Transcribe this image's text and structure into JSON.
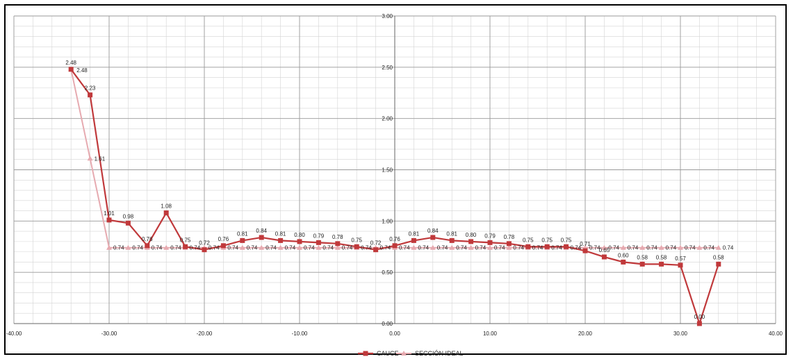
{
  "chart_data": {
    "type": "line",
    "title": "",
    "xlabel": "",
    "ylabel": "",
    "xlim": [
      -40,
      40
    ],
    "ylim": [
      0,
      3
    ],
    "x_ticks": [
      "-40.00",
      "-30.00",
      "-20.00",
      "-10.00",
      "0.00",
      "10.00",
      "20.00",
      "30.00",
      "40.00"
    ],
    "y_ticks": [
      "0.00",
      "0.50",
      "1.00",
      "1.50",
      "2.00",
      "2.50",
      "3.00"
    ],
    "grid": true,
    "legend_position": "bottom",
    "series": [
      {
        "name": "CAUCE",
        "color": "#c0393b",
        "marker": "square",
        "x": [
          -34,
          -32,
          -30,
          -28,
          -26,
          -24,
          -22,
          -20,
          -18,
          -16,
          -14,
          -12,
          -10,
          -8,
          -6,
          -4,
          -2,
          0,
          2,
          4,
          6,
          8,
          10,
          12,
          14,
          16,
          18,
          20,
          22,
          24,
          26,
          28,
          30,
          32,
          34
        ],
        "y": [
          2.48,
          2.23,
          1.01,
          0.98,
          0.76,
          1.08,
          0.75,
          0.72,
          0.76,
          0.81,
          0.84,
          0.81,
          0.8,
          0.79,
          0.78,
          0.75,
          0.72,
          0.76,
          0.81,
          0.84,
          0.81,
          0.8,
          0.79,
          0.78,
          0.75,
          0.75,
          0.75,
          0.71,
          0.65,
          0.6,
          0.58,
          0.58,
          0.57,
          0.0,
          0.58
        ],
        "labels": [
          "2.48",
          "2.23",
          "1.01",
          "0.98",
          "0.76",
          "1.08",
          "0.75",
          "0.72",
          "0.76",
          "0.81",
          "0.84",
          "0.81",
          "0.80",
          "0.79",
          "0.78",
          "0.75",
          "0.72",
          "0.76",
          "0.81",
          "0.84",
          "0.81",
          "0.80",
          "0.79",
          "0.78",
          "0.75",
          "0.75",
          "0.75",
          "0.71",
          "0.65",
          "0.60",
          "0.58",
          "0.58",
          "0.57",
          "0.00",
          "0.58"
        ]
      },
      {
        "name": "SECCIÓN IDEAL",
        "color": "#e6aab0",
        "marker": "triangle",
        "x": [
          -34,
          -32,
          -30,
          -28,
          -26,
          -24,
          -22,
          -20,
          -18,
          -16,
          -14,
          -12,
          -10,
          -8,
          -6,
          -4,
          -2,
          0,
          2,
          4,
          6,
          8,
          10,
          12,
          14,
          16,
          18,
          20,
          22,
          24,
          26,
          28,
          30,
          32,
          34
        ],
        "y": [
          2.48,
          1.61,
          0.74,
          0.74,
          0.74,
          0.74,
          0.74,
          0.74,
          0.74,
          0.74,
          0.74,
          0.74,
          0.74,
          0.74,
          0.74,
          0.74,
          0.74,
          0.74,
          0.74,
          0.74,
          0.74,
          0.74,
          0.74,
          0.74,
          0.74,
          0.74,
          0.74,
          0.74,
          0.74,
          0.74,
          0.74,
          0.74,
          0.74,
          0.74,
          0.74
        ],
        "labels": [
          "2.48",
          "1.61",
          "0.74",
          "0.74",
          "0.74",
          "0.74",
          "0.74",
          "0.74",
          "0.74",
          "0.74",
          "0.74",
          "0.74",
          "0.74",
          "0.74",
          "0.74",
          "0.74",
          "0.74",
          "0.74",
          "0.74",
          "0.74",
          "0.74",
          "0.74",
          "0.74",
          "0.74",
          "0.74",
          "0.74",
          "0.74",
          "0.74",
          "0.74",
          "0.74",
          "0.74",
          "0.74",
          "0.74",
          "0.74",
          "0.74"
        ]
      }
    ]
  }
}
